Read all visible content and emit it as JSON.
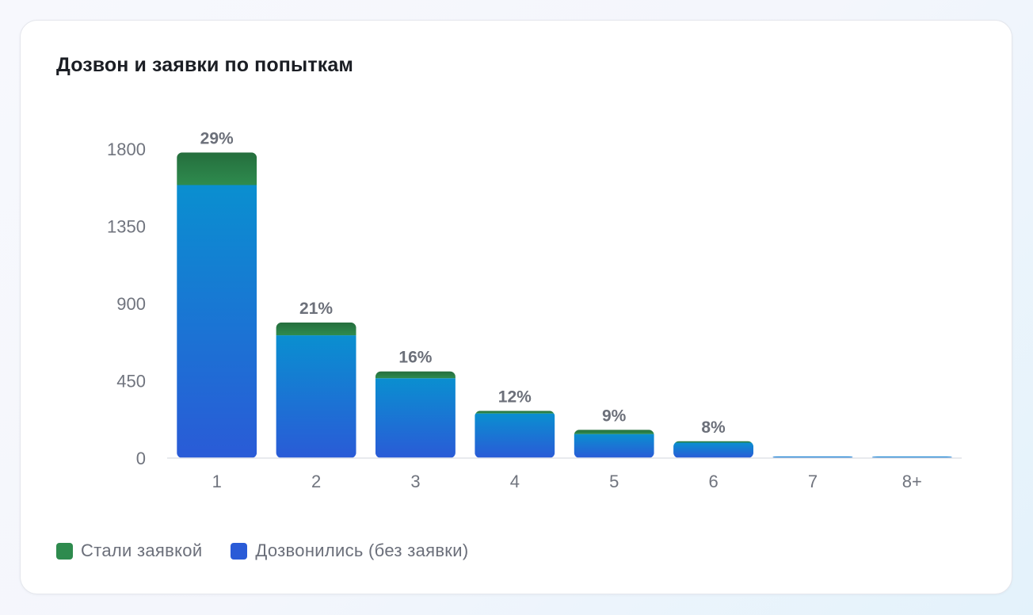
{
  "card": {
    "title": "Дозвон и заявки по попыткам"
  },
  "legend": {
    "items": [
      {
        "label": "Стали заявкой",
        "color": "#2e8b4e"
      },
      {
        "label": "Дозвонились (без заявки)",
        "color": "#2a5bd7"
      }
    ]
  },
  "chart_data": {
    "type": "bar",
    "stacked": true,
    "title": "Дозвон и заявки по попыткам",
    "xlabel": "",
    "ylabel": "",
    "categories": [
      "1",
      "2",
      "3",
      "4",
      "5",
      "6",
      "7",
      "8+"
    ],
    "ylim": [
      0,
      1800
    ],
    "yticks": [
      0,
      450,
      900,
      1350,
      1800
    ],
    "grid": false,
    "legend_position": "bottom-left",
    "series": [
      {
        "name": "Дозвонились (без заявки)",
        "color": "#2a5bd7",
        "color_top": "#0a8fd0",
        "values": [
          1590,
          715,
          465,
          260,
          140,
          90,
          10,
          3
        ]
      },
      {
        "name": "Стали заявкой",
        "color": "#2e8b4e",
        "color_top": "#256e3d",
        "values": [
          190,
          75,
          40,
          15,
          25,
          8,
          0,
          0
        ]
      }
    ],
    "data_labels": [
      "29%",
      "21%",
      "16%",
      "12%",
      "9%",
      "8%",
      "",
      ""
    ]
  }
}
